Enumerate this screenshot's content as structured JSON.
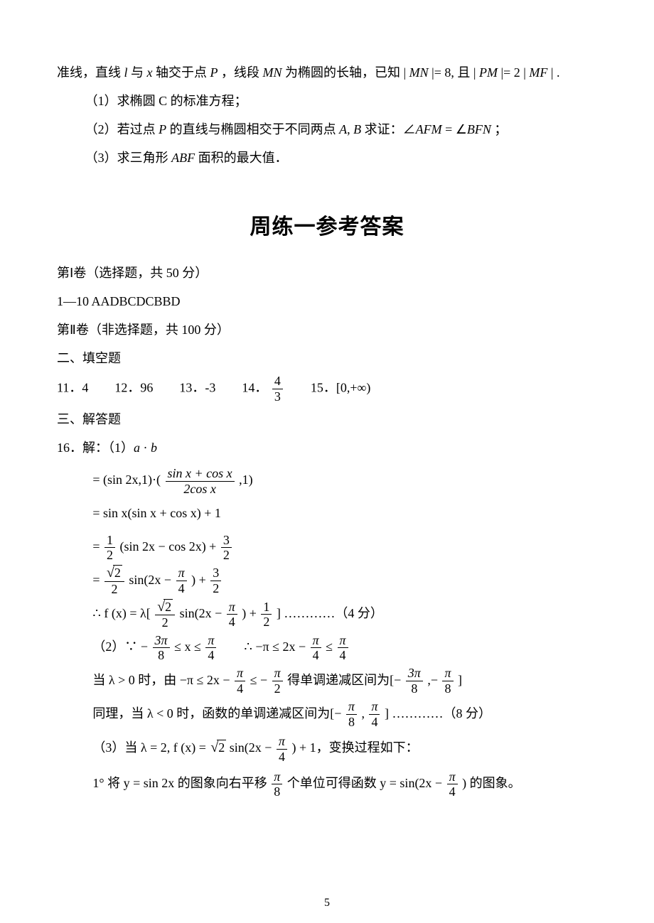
{
  "intro": {
    "line0": "准线，直线 l 与 x 轴交于点 P ，线段 MN 为椭圆的长轴，已知 | MN |= 8, 且 | PM |= 2 | MF | .",
    "sub1": "（1）求椭圆 C 的标准方程；",
    "sub2": "（2）若过点 P 的直线与椭圆相交于不同两点 A, B 求证：∠AFM = ∠BFN ；",
    "sub3": "（3）求三角形 ABF 面积的最大值．"
  },
  "title": "周练一参考答案",
  "part1": {
    "header": "第Ⅰ卷（选择题，共 50 分）",
    "choices": "1—10   AADBCDCBBD"
  },
  "part2_header": "第Ⅱ卷（非选择题，共 100 分）",
  "blanks_header": "二、填空题",
  "blanks": {
    "q11_label": "11．",
    "q11": "4",
    "q12_label": "12．",
    "q12": "96",
    "q13_label": "13．",
    "q13": "-3",
    "q14_label": "14．",
    "q15_label": "15．",
    "q15": "[0,+∞)"
  },
  "solutions_header": "三、解答题",
  "q16": {
    "head": "16．解：（1）a · b",
    "s1_prefix": "= (sin 2x,1)·(",
    "s1_num": "sin x + cos x",
    "s1_den": "2cos x",
    "s1_suffix": ",1)",
    "s2": "= sin x(sin x + cos x) + 1",
    "s3_pre": "= ",
    "s3_num1": "1",
    "s3_den1": "2",
    "s3_mid": "(sin 2x − cos 2x) + ",
    "s3_num2": "3",
    "s3_den2": "2",
    "s4_pre": "= ",
    "s4_nsqrt": "2",
    "s4_den1": "2",
    "s4_mid": "sin(2x − ",
    "s4_num2": "π",
    "s4_den2": "4",
    "s4_mid2": ") + ",
    "s4_num3": "3",
    "s4_den3": "2",
    "s5_pre": "∴ f (x) = λ[",
    "s5_nsqrt": "2",
    "s5_den1": "2",
    "s5_mid": "sin(2x − ",
    "s5_num2": "π",
    "s5_den2": "4",
    "s5_mid2": ") + ",
    "s5_num3": "1",
    "s5_den3": "2",
    "s5_end": "]  …………（4 分）",
    "p2_pre": "（2）∵ − ",
    "p2_num1": "3π",
    "p2_den1": "8",
    "p2_mid1": " ≤ x ≤ ",
    "p2_num2": "π",
    "p2_den2": "4",
    "p2_there": "∴ −π ≤ 2x − ",
    "p2_num3": "π",
    "p2_den3": "4",
    "p2_mid2": " ≤ ",
    "p2_num4": "π",
    "p2_den4": "4",
    "p2l_pre": "当 λ > 0 时，由 −π ≤ 2x − ",
    "p2l_num1": "π",
    "p2l_den1": "4",
    "p2l_mid": " ≤ − ",
    "p2l_num2": "π",
    "p2l_den2": "2",
    "p2l_mid2": " 得单调递减区间为[− ",
    "p2l_num3": "3π",
    "p2l_den3": "8",
    "p2l_mid3": ",− ",
    "p2l_num4": "π",
    "p2l_den4": "8",
    "p2l_end": "]",
    "p2n_pre": "同理，当 λ < 0 时，函数的单调递减区间为[− ",
    "p2n_num1": "π",
    "p2n_den1": "8",
    "p2n_mid": ", ",
    "p2n_num2": "π",
    "p2n_den2": "4",
    "p2n_end": "] …………（8 分）",
    "p3_pre": "（3）当 λ = 2, f (x) = ",
    "p3_sqrt": "2",
    "p3_mid": " sin(2x − ",
    "p3_num": "π",
    "p3_den": "4",
    "p3_end": ") + 1，变换过程如下：",
    "p31_pre": "1° 将 y = sin 2x 的图象向右平移 ",
    "p31_num1": "π",
    "p31_den1": "8",
    "p31_mid": " 个单位可得函数 y = sin(2x − ",
    "p31_num2": "π",
    "p31_den2": "4",
    "p31_end": ") 的图象。"
  },
  "pageno": "5",
  "colors": {
    "text": "#000000",
    "bg": "#ffffff"
  },
  "fontsize_pt": 12
}
